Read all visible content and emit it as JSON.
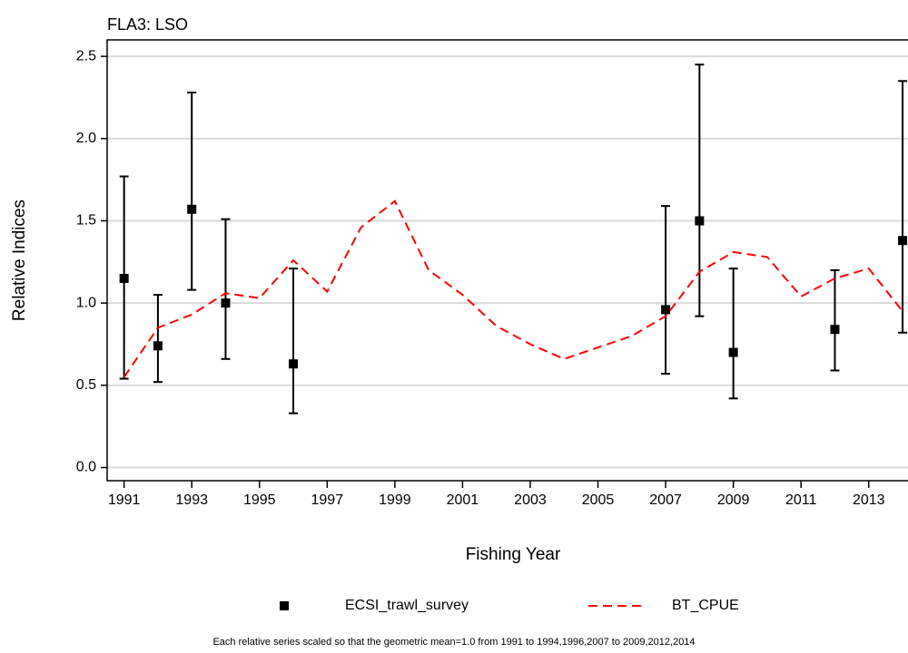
{
  "chart_data": {
    "type": "line",
    "title": "FLA3: LSO",
    "x_label": "Fishing Year",
    "y_label": "Relative Indices",
    "footnote": "Each relative series scaled so that the geometric mean=1.0 from 1991 to 1994,1996,2007 to 2009,2012,2014",
    "x": [
      1991,
      1992,
      1993,
      1994,
      1995,
      1996,
      1997,
      1998,
      1999,
      2000,
      2001,
      2002,
      2003,
      2004,
      2005,
      2006,
      2007,
      2008,
      2009,
      2010,
      2011,
      2012,
      2013,
      2014
    ],
    "series": [
      {
        "name": "ECSI_trawl_survey",
        "color": "#000000",
        "style": "points",
        "values": [
          1.15,
          0.74,
          1.57,
          1.0,
          null,
          0.63,
          null,
          null,
          null,
          null,
          null,
          null,
          null,
          null,
          null,
          null,
          0.96,
          1.5,
          0.7,
          null,
          null,
          0.84,
          null,
          1.38
        ],
        "lower": [
          0.54,
          0.52,
          1.08,
          0.66,
          null,
          0.33,
          null,
          null,
          null,
          null,
          null,
          null,
          null,
          null,
          null,
          null,
          0.57,
          0.92,
          0.42,
          null,
          null,
          0.59,
          null,
          0.82
        ],
        "upper": [
          1.77,
          1.05,
          2.28,
          1.51,
          null,
          1.21,
          null,
          null,
          null,
          null,
          null,
          null,
          null,
          null,
          null,
          null,
          1.59,
          2.45,
          1.21,
          null,
          null,
          1.2,
          null,
          2.35
        ]
      },
      {
        "name": "BT_CPUE",
        "color": "#ff0000",
        "style": "dashed",
        "values": [
          0.55,
          0.85,
          0.93,
          1.06,
          1.03,
          1.26,
          1.07,
          1.46,
          1.62,
          1.2,
          1.05,
          0.86,
          0.75,
          0.66,
          0.73,
          0.8,
          0.92,
          1.19,
          1.31,
          1.28,
          1.04,
          1.15,
          1.21,
          0.95
        ]
      }
    ],
    "xlim": [
      1990.5,
      2014.16
    ],
    "ylim": [
      -0.08,
      2.6
    ],
    "xticks": [
      1991,
      1993,
      1995,
      1997,
      1999,
      2001,
      2003,
      2005,
      2007,
      2009,
      2011,
      2013
    ],
    "yticks": [
      {
        "value": 0,
        "label": "0.0"
      },
      0.5,
      {
        "value": 1,
        "label": "1.0"
      },
      1.5,
      {
        "value": 2,
        "label": "2.0"
      },
      2.5
    ],
    "grid": true
  }
}
